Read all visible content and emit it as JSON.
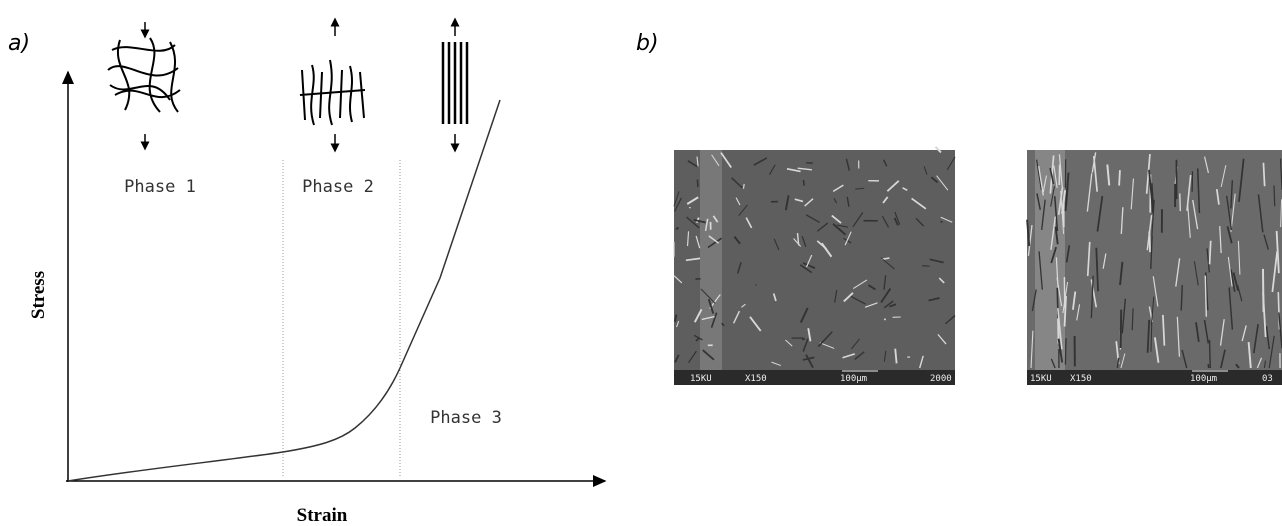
{
  "panels": [
    {
      "label": "a)",
      "y_axis_label": "Stress",
      "x_axis_label": "Strain",
      "phases": [
        "Phase 1",
        "Phase 2",
        "Phase 3"
      ]
    },
    {
      "label": "b)",
      "images": [
        {
          "captions": [
            "15KU",
            "X150",
            "100μm",
            "2000"
          ]
        },
        {
          "captions": [
            "15KU",
            "X150",
            "100μm",
            "03"
          ]
        }
      ]
    }
  ]
}
